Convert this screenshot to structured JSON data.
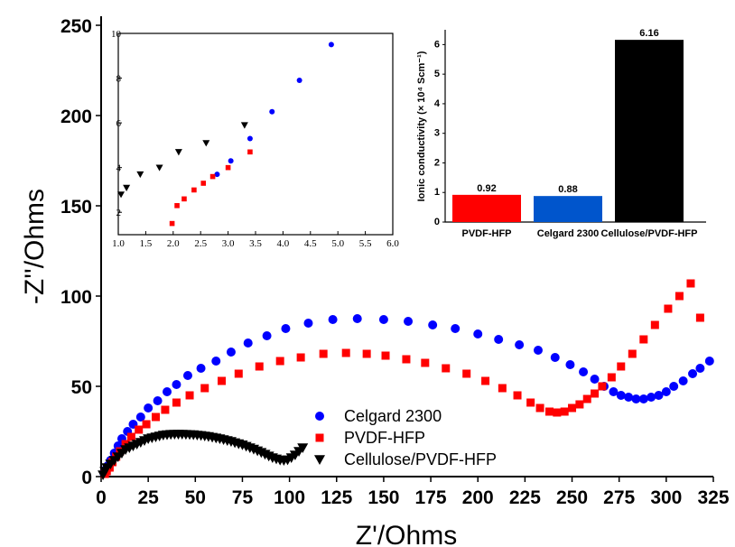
{
  "chart_data": [
    {
      "id": "main",
      "type": "scatter",
      "xlabel": "Z'/Ohms",
      "ylabel": "-Z''/Ohms",
      "xlim": [
        0,
        325
      ],
      "ylim": [
        0,
        250
      ],
      "xticks": [
        0,
        25,
        50,
        75,
        100,
        125,
        150,
        175,
        200,
        225,
        250,
        275,
        300,
        325
      ],
      "yticks": [
        0,
        50,
        100,
        150,
        200,
        250
      ],
      "legend_position": "bottom-left",
      "series": [
        {
          "name": "Celgard 2300",
          "color": "#0000ff",
          "marker": "circle",
          "points": [
            [
              1.5,
              2
            ],
            [
              2.5,
              4
            ],
            [
              3.5,
              6
            ],
            [
              5,
              9
            ],
            [
              7,
              13
            ],
            [
              9,
              17
            ],
            [
              11,
              21
            ],
            [
              14,
              25
            ],
            [
              17,
              29
            ],
            [
              21,
              33
            ],
            [
              25,
              38
            ],
            [
              30,
              42
            ],
            [
              35,
              47
            ],
            [
              40,
              51
            ],
            [
              46,
              56
            ],
            [
              53,
              60
            ],
            [
              61,
              64
            ],
            [
              69,
              69
            ],
            [
              78,
              74
            ],
            [
              88,
              78
            ],
            [
              98,
              82
            ],
            [
              110,
              85
            ],
            [
              123,
              87
            ],
            [
              136,
              87.5
            ],
            [
              150,
              87
            ],
            [
              163,
              86
            ],
            [
              176,
              84
            ],
            [
              188,
              82
            ],
            [
              200,
              79
            ],
            [
              211,
              76
            ],
            [
              222,
              73
            ],
            [
              232,
              70
            ],
            [
              241,
              66
            ],
            [
              249,
              62
            ],
            [
              256,
              58
            ],
            [
              262,
              54
            ],
            [
              267,
              50
            ],
            [
              272,
              47
            ],
            [
              276,
              45
            ],
            [
              280,
              44
            ],
            [
              284,
              43
            ],
            [
              288,
              43
            ],
            [
              292,
              44
            ],
            [
              296,
              45
            ],
            [
              300,
              47
            ],
            [
              304,
              50
            ],
            [
              309,
              53
            ],
            [
              314,
              57
            ],
            [
              318,
              60
            ],
            [
              323,
              64
            ]
          ]
        },
        {
          "name": "PVDF-HFP",
          "color": "#ff0000",
          "marker": "square",
          "points": [
            [
              2,
              1.5
            ],
            [
              3,
              3
            ],
            [
              4.5,
              5
            ],
            [
              6,
              8
            ],
            [
              8,
              11
            ],
            [
              10,
              14
            ],
            [
              13,
              18
            ],
            [
              16,
              22
            ],
            [
              20,
              26
            ],
            [
              24,
              29
            ],
            [
              29,
              33
            ],
            [
              34,
              37
            ],
            [
              40,
              41
            ],
            [
              47,
              45
            ],
            [
              55,
              49
            ],
            [
              64,
              53
            ],
            [
              73,
              57
            ],
            [
              84,
              61
            ],
            [
              95,
              64
            ],
            [
              106,
              66
            ],
            [
              118,
              68
            ],
            [
              130,
              68.5
            ],
            [
              141,
              68
            ],
            [
              151,
              67
            ],
            [
              162,
              65
            ],
            [
              172,
              63
            ],
            [
              183,
              60
            ],
            [
              194,
              57
            ],
            [
              204,
              53
            ],
            [
              213,
              49
            ],
            [
              221,
              45
            ],
            [
              228,
              41
            ],
            [
              233,
              38
            ],
            [
              238,
              36
            ],
            [
              242,
              35.5
            ],
            [
              246,
              36
            ],
            [
              250,
              38
            ],
            [
              254,
              40
            ],
            [
              258,
              43
            ],
            [
              262,
              46
            ],
            [
              266,
              50
            ],
            [
              271,
              55
            ],
            [
              276,
              61
            ],
            [
              282,
              68
            ],
            [
              288,
              76
            ],
            [
              294,
              84
            ],
            [
              301,
              93
            ],
            [
              307,
              100
            ],
            [
              313,
              107
            ],
            [
              318,
              88
            ]
          ]
        },
        {
          "name": "Cellulose/PVDF-HFP",
          "color": "#000000",
          "marker": "triangle-down",
          "points": [
            [
              1,
              1
            ],
            [
              2,
              3
            ],
            [
              3,
              5
            ],
            [
              5,
              7
            ],
            [
              7,
              9
            ],
            [
              9,
              11
            ],
            [
              11,
              13
            ],
            [
              13,
              15
            ],
            [
              15,
              16
            ],
            [
              17,
              17
            ],
            [
              19,
              18
            ],
            [
              21,
              19
            ],
            [
              23,
              20
            ],
            [
              25,
              21
            ],
            [
              27,
              21.5
            ],
            [
              29,
              22
            ],
            [
              31,
              22.5
            ],
            [
              33,
              23
            ],
            [
              35,
              23.2
            ],
            [
              37,
              23.4
            ],
            [
              39,
              23.5
            ],
            [
              41,
              23.5
            ],
            [
              43,
              23.5
            ],
            [
              45,
              23.4
            ],
            [
              47,
              23.3
            ],
            [
              49,
              23.2
            ],
            [
              51,
              23
            ],
            [
              53,
              22.8
            ],
            [
              55,
              22.5
            ],
            [
              57,
              22.2
            ],
            [
              59,
              21.8
            ],
            [
              61,
              21.4
            ],
            [
              63,
              21
            ],
            [
              65,
              20.5
            ],
            [
              67,
              20
            ],
            [
              69,
              19.5
            ],
            [
              71,
              18.8
            ],
            [
              73,
              18.2
            ],
            [
              75,
              17.6
            ],
            [
              77,
              16.8
            ],
            [
              79,
              16
            ],
            [
              81,
              15.2
            ],
            [
              83,
              14.3
            ],
            [
              85,
              13.4
            ],
            [
              87,
              12.4
            ],
            [
              89,
              11.4
            ],
            [
              91,
              10.5
            ],
            [
              93,
              9.8
            ],
            [
              95,
              9.2
            ],
            [
              97,
              9
            ],
            [
              99,
              9.3
            ],
            [
              101,
              10.5
            ],
            [
              103,
              12
            ],
            [
              105,
              14
            ],
            [
              107,
              16
            ]
          ]
        }
      ]
    },
    {
      "id": "inset-zoom",
      "type": "scatter",
      "xlim": [
        1.0,
        6.0
      ],
      "ylim": [
        1,
        10
      ],
      "xticks": [
        1.0,
        1.5,
        2.0,
        2.5,
        3.0,
        3.5,
        4.0,
        4.5,
        5.0,
        5.5,
        6.0
      ],
      "yticks": [
        2,
        4,
        6,
        8,
        10
      ],
      "series": [
        {
          "color": "#0000ff",
          "marker": "circle",
          "points": [
            [
              2.8,
              3.7
            ],
            [
              3.05,
              4.3
            ],
            [
              3.4,
              5.3
            ],
            [
              3.8,
              6.5
            ],
            [
              4.3,
              7.9
            ],
            [
              4.88,
              9.5
            ]
          ]
        },
        {
          "color": "#ff0000",
          "marker": "square",
          "points": [
            [
              1.98,
              1.5
            ],
            [
              2.07,
              2.3
            ],
            [
              2.2,
              2.6
            ],
            [
              2.38,
              3.0
            ],
            [
              2.55,
              3.3
            ],
            [
              2.72,
              3.6
            ],
            [
              3.0,
              4.0
            ],
            [
              3.4,
              4.7
            ]
          ]
        },
        {
          "color": "#000000",
          "marker": "triangle-down",
          "points": [
            [
              1.05,
              2.8
            ],
            [
              1.15,
              3.1
            ],
            [
              1.4,
              3.7
            ],
            [
              1.75,
              4.0
            ],
            [
              2.1,
              4.7
            ],
            [
              2.6,
              5.1
            ],
            [
              3.3,
              5.9
            ]
          ]
        }
      ]
    },
    {
      "id": "inset-bar",
      "type": "bar",
      "ylabel": "Ionic conductivity  (× 10⁴ Scm⁻¹)",
      "categories": [
        "PVDF-HFP",
        "Celgard 2300",
        "Cellulose/PVDF-HFP"
      ],
      "values": [
        0.92,
        0.88,
        6.16
      ],
      "value_labels": [
        "0.92",
        "0.88",
        "6.16"
      ],
      "colors": [
        "#ff0000",
        "#0055cc",
        "#000000"
      ],
      "ylim": [
        0,
        6.5
      ],
      "yticks": [
        0,
        1,
        2,
        3,
        4,
        5,
        6
      ]
    }
  ]
}
